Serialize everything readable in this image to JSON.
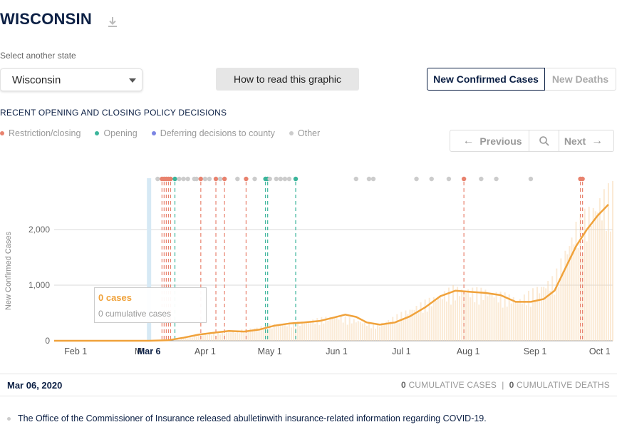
{
  "header": {
    "state_title": "WISCONSIN"
  },
  "selector": {
    "label": "Select another state",
    "value": "Wisconsin"
  },
  "how_button": "How to read this graphic",
  "tabs": {
    "cases": "New Confirmed Cases",
    "deaths": "New Deaths"
  },
  "policy_heading": "RECENT OPENING AND CLOSING POLICY DECISIONS",
  "legend": [
    {
      "label": "Restriction/closing",
      "color": "#e8826e"
    },
    {
      "label": "Opening",
      "color": "#3bb59b"
    },
    {
      "label": "Deferring decisions to county",
      "color": "#7c85e3"
    },
    {
      "label": "Other",
      "color": "#cccccc"
    }
  ],
  "nav": {
    "previous": "Previous",
    "next": "Next"
  },
  "tooltip": {
    "cases": "0 cases",
    "cumulative": "0 cumulative cases"
  },
  "selected_date": "Mar 06, 2020",
  "totals": {
    "cases_num": "0",
    "cases_label": "CUMULATIVE CASES",
    "sep": "|",
    "deaths_num": "0",
    "deaths_label": "CUMULATIVE DEATHS"
  },
  "note": "The Office of the Commissioner of Insurance released abulletinwith insurance-related information regarding COVID-19.",
  "chart_data": {
    "type": "line",
    "ylabel": "New Confirmed Cases",
    "ylim": [
      0,
      2500
    ],
    "yticks": [
      0,
      1000,
      2000
    ],
    "ytick_labels": [
      "0",
      "1,000",
      "2,000"
    ],
    "xlim": [
      "2020-01-22",
      "2020-10-07"
    ],
    "xticks": [
      {
        "date": "2020-02-01",
        "label": "Feb 1"
      },
      {
        "date": "2020-03-01",
        "label": "M"
      },
      {
        "date": "2020-04-01",
        "label": "Apr 1"
      },
      {
        "date": "2020-05-01",
        "label": "May 1"
      },
      {
        "date": "2020-06-01",
        "label": "Jun 1"
      },
      {
        "date": "2020-07-01",
        "label": "Jul 1"
      },
      {
        "date": "2020-08-01",
        "label": "Aug 1"
      },
      {
        "date": "2020-09-01",
        "label": "Sep 1"
      },
      {
        "date": "2020-10-01",
        "label": "Oct 1"
      }
    ],
    "selected": {
      "date": "2020-03-06",
      "label": "Mar 6"
    },
    "series": [
      {
        "style": "7-day average",
        "color": "#f0a23b",
        "points": [
          [
            "2020-01-22",
            0
          ],
          [
            "2020-03-06",
            0
          ],
          [
            "2020-03-15",
            10
          ],
          [
            "2020-03-22",
            55
          ],
          [
            "2020-03-29",
            110
          ],
          [
            "2020-04-05",
            145
          ],
          [
            "2020-04-12",
            175
          ],
          [
            "2020-04-19",
            165
          ],
          [
            "2020-04-26",
            200
          ],
          [
            "2020-05-03",
            270
          ],
          [
            "2020-05-10",
            310
          ],
          [
            "2020-05-17",
            330
          ],
          [
            "2020-05-24",
            355
          ],
          [
            "2020-05-31",
            420
          ],
          [
            "2020-06-05",
            470
          ],
          [
            "2020-06-10",
            430
          ],
          [
            "2020-06-15",
            330
          ],
          [
            "2020-06-21",
            290
          ],
          [
            "2020-06-28",
            330
          ],
          [
            "2020-07-05",
            440
          ],
          [
            "2020-07-12",
            600
          ],
          [
            "2020-07-19",
            800
          ],
          [
            "2020-07-26",
            900
          ],
          [
            "2020-08-02",
            880
          ],
          [
            "2020-08-09",
            860
          ],
          [
            "2020-08-16",
            820
          ],
          [
            "2020-08-23",
            700
          ],
          [
            "2020-08-30",
            700
          ],
          [
            "2020-09-05",
            750
          ],
          [
            "2020-09-10",
            900
          ],
          [
            "2020-09-15",
            1300
          ],
          [
            "2020-09-20",
            1700
          ],
          [
            "2020-09-25",
            2000
          ],
          [
            "2020-09-30",
            2250
          ],
          [
            "2020-10-05",
            2450
          ]
        ]
      },
      {
        "style": "daily",
        "color": "#f7d9b3",
        "points": [
          [
            "2020-03-20",
            40
          ],
          [
            "2020-04-01",
            120
          ],
          [
            "2020-04-15",
            180
          ],
          [
            "2020-05-01",
            300
          ],
          [
            "2020-05-15",
            350
          ],
          [
            "2020-06-01",
            480
          ],
          [
            "2020-06-20",
            300
          ],
          [
            "2020-07-10",
            700
          ],
          [
            "2020-07-25",
            1000
          ],
          [
            "2020-08-10",
            950
          ],
          [
            "2020-08-25",
            800
          ],
          [
            "2020-09-10",
            1200
          ],
          [
            "2020-09-20",
            2200
          ],
          [
            "2020-10-01",
            2700
          ],
          [
            "2020-10-07",
            2900
          ]
        ]
      }
    ],
    "policy_events": [
      {
        "date": "2020-03-10",
        "type": "Other"
      },
      {
        "date": "2020-03-12",
        "type": "Restriction/closing"
      },
      {
        "date": "2020-03-13",
        "type": "Restriction/closing"
      },
      {
        "date": "2020-03-14",
        "type": "Restriction/closing"
      },
      {
        "date": "2020-03-15",
        "type": "Restriction/closing"
      },
      {
        "date": "2020-03-16",
        "type": "Restriction/closing"
      },
      {
        "date": "2020-03-18",
        "type": "Opening"
      },
      {
        "date": "2020-03-20",
        "type": "Other"
      },
      {
        "date": "2020-03-22",
        "type": "Other"
      },
      {
        "date": "2020-03-24",
        "type": "Other"
      },
      {
        "date": "2020-03-27",
        "type": "Other"
      },
      {
        "date": "2020-03-28",
        "type": "Other"
      },
      {
        "date": "2020-03-30",
        "type": "Restriction/closing"
      },
      {
        "date": "2020-04-01",
        "type": "Other"
      },
      {
        "date": "2020-04-03",
        "type": "Other"
      },
      {
        "date": "2020-04-06",
        "type": "Restriction/closing"
      },
      {
        "date": "2020-04-08",
        "type": "Other"
      },
      {
        "date": "2020-04-10",
        "type": "Restriction/closing"
      },
      {
        "date": "2020-04-16",
        "type": "Other"
      },
      {
        "date": "2020-04-20",
        "type": "Restriction/closing"
      },
      {
        "date": "2020-04-24",
        "type": "Other"
      },
      {
        "date": "2020-04-29",
        "type": "Opening"
      },
      {
        "date": "2020-04-30",
        "type": "Opening"
      },
      {
        "date": "2020-05-01",
        "type": "Other"
      },
      {
        "date": "2020-05-04",
        "type": "Other"
      },
      {
        "date": "2020-05-06",
        "type": "Other"
      },
      {
        "date": "2020-05-08",
        "type": "Other"
      },
      {
        "date": "2020-05-10",
        "type": "Other"
      },
      {
        "date": "2020-05-13",
        "type": "Opening"
      },
      {
        "date": "2020-06-10",
        "type": "Other"
      },
      {
        "date": "2020-06-16",
        "type": "Other"
      },
      {
        "date": "2020-06-18",
        "type": "Other"
      },
      {
        "date": "2020-07-08",
        "type": "Other"
      },
      {
        "date": "2020-07-15",
        "type": "Other"
      },
      {
        "date": "2020-07-23",
        "type": "Other"
      },
      {
        "date": "2020-07-30",
        "type": "Restriction/closing"
      },
      {
        "date": "2020-08-07",
        "type": "Other"
      },
      {
        "date": "2020-08-14",
        "type": "Other"
      },
      {
        "date": "2020-08-30",
        "type": "Other"
      },
      {
        "date": "2020-09-22",
        "type": "Restriction/closing"
      },
      {
        "date": "2020-09-23",
        "type": "Restriction/closing"
      }
    ]
  }
}
